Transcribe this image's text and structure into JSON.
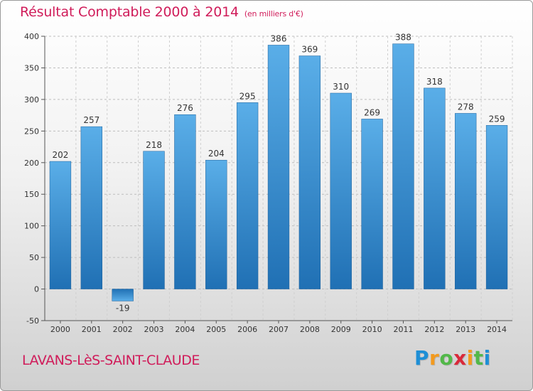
{
  "title": "Résultat Comptable 2000 à 2014",
  "subtitle": "(en milliers d'€)",
  "location": "LAVANS-LèS-SAINT-CLAUDE",
  "logo": {
    "letters": [
      "P",
      "r",
      "o",
      "x",
      "i",
      "t",
      "i"
    ],
    "colors": [
      "#1e8fd6",
      "#f39a1e",
      "#52b849",
      "#d9293a",
      "#f39a1e",
      "#52b849",
      "#1e8fd6"
    ]
  },
  "colors": {
    "accent": "#d01c5a",
    "bar_light": "#5aaee8",
    "bar_dark": "#2070b4"
  },
  "chart_data": {
    "type": "bar",
    "title": "Résultat Comptable 2000 à 2014",
    "subtitle": "(en milliers d'€)",
    "xlabel": "",
    "ylabel": "",
    "categories": [
      "2000",
      "2001",
      "2002",
      "2003",
      "2004",
      "2005",
      "2006",
      "2007",
      "2008",
      "2009",
      "2010",
      "2011",
      "2012",
      "2013",
      "2014"
    ],
    "values": [
      202,
      257,
      -19,
      218,
      276,
      204,
      295,
      386,
      369,
      310,
      269,
      388,
      318,
      278,
      259
    ],
    "ylim": [
      -50,
      400
    ],
    "yticks": [
      -50,
      0,
      50,
      100,
      150,
      200,
      250,
      300,
      350,
      400
    ],
    "grid": "horizontal-dashed",
    "legend": "none"
  }
}
